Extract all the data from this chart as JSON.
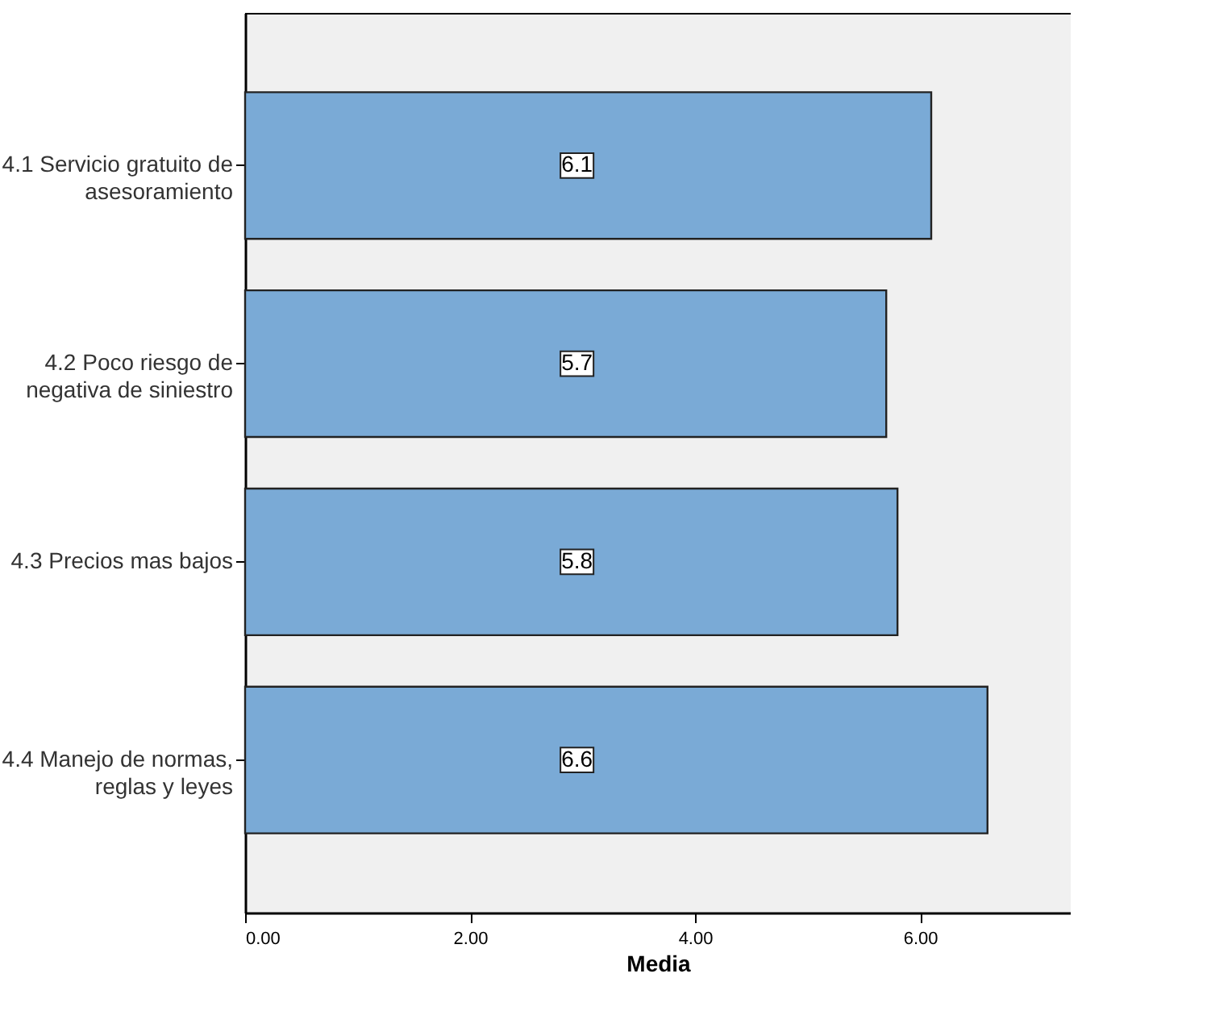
{
  "chart_data": {
    "type": "bar",
    "orientation": "horizontal",
    "xlabel": "Media",
    "categories": [
      "4.1 Servicio gratuito de\nasesoramiento",
      "4.2 Poco riesgo de\nnegativa de siniestro",
      "4.3 Precios mas bajos",
      "4.4 Manejo de normas,\nreglas y leyes"
    ],
    "values": [
      6.1,
      5.7,
      5.8,
      6.6
    ],
    "color": "#7aaad6",
    "data_labels": true,
    "xlim": [
      0,
      7.34
    ],
    "xticks": [
      {
        "value": 0,
        "label": "0.00"
      },
      {
        "value": 2,
        "label": "2.00"
      },
      {
        "value": 4,
        "label": "4.00"
      },
      {
        "value": 6,
        "label": "6.00"
      }
    ],
    "grid": false
  }
}
